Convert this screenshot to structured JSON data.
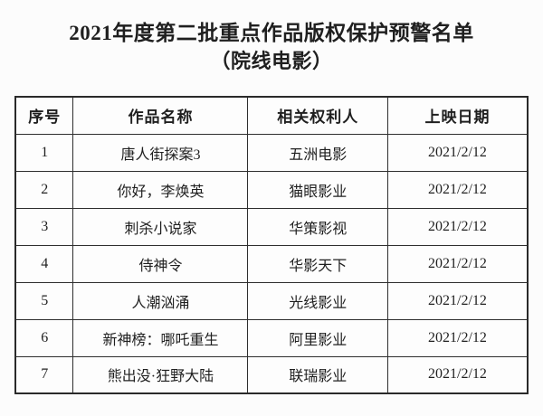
{
  "document": {
    "title_line1": "2021年度第二批重点作品版权保护预警名单",
    "title_line2": "（院线电影）"
  },
  "table": {
    "headers": {
      "no": "序号",
      "title": "作品名称",
      "rights_holder": "相关权利人",
      "release_date": "上映日期"
    },
    "rows": [
      {
        "no": "1",
        "title": "唐人街探案3",
        "rights_holder": "五洲电影",
        "release_date": "2021/2/12"
      },
      {
        "no": "2",
        "title": "你好，李焕英",
        "rights_holder": "猫眼影业",
        "release_date": "2021/2/12"
      },
      {
        "no": "3",
        "title": "刺杀小说家",
        "rights_holder": "华策影视",
        "release_date": "2021/2/12"
      },
      {
        "no": "4",
        "title": "侍神令",
        "rights_holder": "华影天下",
        "release_date": "2021/2/12"
      },
      {
        "no": "5",
        "title": "人潮汹涌",
        "rights_holder": "光线影业",
        "release_date": "2021/2/12"
      },
      {
        "no": "6",
        "title": "新神榜：哪吒重生",
        "rights_holder": "阿里影业",
        "release_date": "2021/2/12"
      },
      {
        "no": "7",
        "title": "熊出没·狂野大陆",
        "rights_holder": "联瑞影业",
        "release_date": "2021/2/12"
      }
    ]
  },
  "colors": {
    "background": "#fcfcfc",
    "text": "#1f1f1f",
    "border": "#2e2e2e"
  }
}
